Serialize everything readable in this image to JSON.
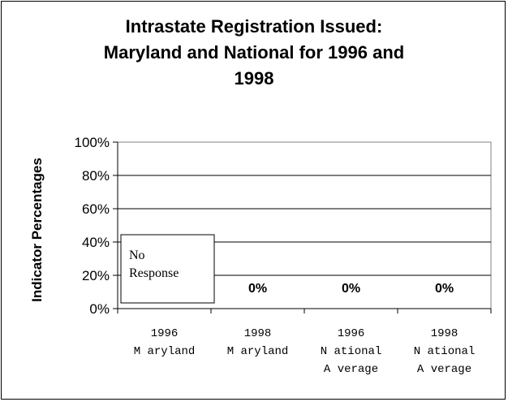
{
  "chart_data": {
    "type": "bar",
    "title_lines": [
      "Intrastate Registration Issued:",
      "Maryland and National for 1996 and",
      "1998"
    ],
    "ylabel": "Indicator Percentages",
    "xlabel": "",
    "ylim": [
      0,
      100
    ],
    "y_ticks": [
      "0%",
      "20%",
      "40%",
      "60%",
      "80%",
      "100%"
    ],
    "y_tick_values": [
      0,
      20,
      40,
      60,
      80,
      100
    ],
    "grid": true,
    "categories": [
      [
        "1996",
        "M aryland"
      ],
      [
        "1998",
        "M aryland"
      ],
      [
        "1996",
        "N ational",
        "A verage"
      ],
      [
        "1998",
        "N ational",
        "A verage"
      ]
    ],
    "values": [
      null,
      0,
      0,
      0
    ],
    "data_labels": [
      "",
      "0%",
      "0%",
      "0%"
    ],
    "annotation": {
      "lines": [
        "No",
        "Response"
      ],
      "category_index": 0
    }
  }
}
